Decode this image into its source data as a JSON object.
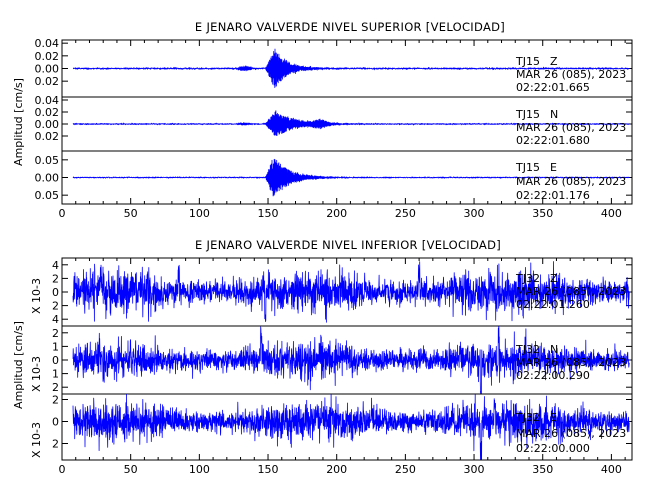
{
  "colors": {
    "trace": "#0000ff",
    "axes": "#000000",
    "background": "#ffffff"
  },
  "chart_data": [
    {
      "type": "line",
      "title": "E JENARO VALVERDE NIVEL SUPERIOR [VELOCIDAD]",
      "ylabel": "Amplitud [cm/s]",
      "xlabel": "",
      "xlim": [
        0,
        415
      ],
      "x_ticks": [
        0,
        50,
        100,
        150,
        200,
        250,
        300,
        350,
        400
      ],
      "x_tick_labels": [
        "0",
        "50",
        "100",
        "150",
        "200",
        "250",
        "300",
        "350",
        "400"
      ],
      "grid": false,
      "panels": [
        {
          "station": "TJ15",
          "channel": "Z",
          "date": "MAR 26 (085), 2023",
          "time": "02:22:01.665",
          "ylim": [
            -0.045,
            0.045
          ],
          "y_ticks": [
            -0.02,
            0.0,
            0.02,
            0.04
          ],
          "y_tick_labels": [
            "0.02",
            "0.00",
            "0.02",
            "0.04"
          ],
          "noise_level": 0.0006,
          "event": {
            "onset": 148,
            "peak_time": 155,
            "peak_amplitude": 0.032,
            "decay": 9,
            "coda_amplitude": 0.0008,
            "coda_decay": 40
          },
          "precursor": {
            "time": 133,
            "amplitude": 0.004,
            "width": 5
          },
          "secondary": null
        },
        {
          "station": "TJ15",
          "channel": "N",
          "date": "MAR 26 (085), 2023",
          "time": "02:22:01.680",
          "ylim": [
            -0.045,
            0.045
          ],
          "y_ticks": [
            -0.02,
            0.0,
            0.02,
            0.04
          ],
          "y_tick_labels": [
            "0.02",
            "0.00",
            "0.02",
            "0.04"
          ],
          "noise_level": 0.0005,
          "event": {
            "onset": 148,
            "peak_time": 155,
            "peak_amplitude": 0.022,
            "decay": 14,
            "coda_amplitude": 0.001,
            "coda_decay": 45
          },
          "precursor": {
            "time": 133,
            "amplitude": 0.002,
            "width": 5
          },
          "secondary": {
            "time": 188,
            "amplitude": 0.006,
            "width": 6
          }
        },
        {
          "station": "TJ15",
          "channel": "E",
          "date": "MAR 26 (085), 2023",
          "time": "02:22:01.176",
          "ylim": [
            -0.075,
            0.075
          ],
          "y_ticks": [
            -0.05,
            0.0,
            0.05
          ],
          "y_tick_labels": [
            "0.05",
            "0.00",
            "0.05"
          ],
          "noise_level": 0.0008,
          "event": {
            "onset": 148,
            "peak_time": 154,
            "peak_amplitude": 0.06,
            "decay": 11,
            "coda_amplitude": 0.001,
            "coda_decay": 45
          },
          "precursor": null,
          "secondary": null
        }
      ]
    },
    {
      "type": "line",
      "title": "E JENARO VALVERDE NIVEL INFERIOR [VELOCIDAD]",
      "ylabel": "Amplitud [cm/s]",
      "xlabel": "",
      "xlim": [
        0,
        415
      ],
      "x_ticks": [
        0,
        50,
        100,
        150,
        200,
        250,
        300,
        350,
        400
      ],
      "x_tick_labels": [
        "0",
        "50",
        "100",
        "150",
        "200",
        "250",
        "300",
        "350",
        "400"
      ],
      "grid": false,
      "panels": [
        {
          "station": "TJ32",
          "channel": "Z",
          "date": "MAR 26 (085), 2023",
          "time": "02:22:01.260",
          "scale_label": "X 10-3",
          "ylim": [
            -5,
            5
          ],
          "y_ticks": [
            -4,
            -2,
            0,
            2,
            4
          ],
          "y_tick_labels": [
            "4",
            "2",
            "0",
            "2",
            "4"
          ],
          "noise_level": 1.4,
          "spikes": [
            {
              "time": 85,
              "amplitude": 3.5
            },
            {
              "time": 148,
              "amplitude": -4.5
            },
            {
              "time": 260,
              "amplitude": 3.2
            }
          ]
        },
        {
          "station": "TJ32",
          "channel": "N",
          "date": "MAR 26 (085), 2023",
          "time": "02:22:00.290",
          "scale_label": "X 10-3",
          "ylim": [
            -2.5,
            2.5
          ],
          "y_ticks": [
            -2,
            -1,
            0,
            1,
            2
          ],
          "y_tick_labels": [
            "2",
            "1",
            "0",
            "1",
            "2"
          ],
          "noise_level": 0.6,
          "spikes": [
            {
              "time": 145,
              "amplitude": 2.0
            },
            {
              "time": 305,
              "amplitude": -2.4
            },
            {
              "time": 318,
              "amplitude": 1.9
            }
          ]
        },
        {
          "station": "TJ32",
          "channel": "E",
          "date": "MAR 26 (085), 2023",
          "time": "02:22:00.000",
          "scale_label": "X 10-3",
          "ylim": [
            -3.5,
            2.5
          ],
          "y_ticks": [
            -2,
            0,
            2
          ],
          "y_tick_labels": [
            "2",
            "0",
            "2"
          ],
          "noise_level": 0.8,
          "spikes": [
            {
              "time": 305,
              "amplitude": -3.2
            },
            {
              "time": 315,
              "amplitude": 2.1
            }
          ]
        }
      ]
    }
  ]
}
